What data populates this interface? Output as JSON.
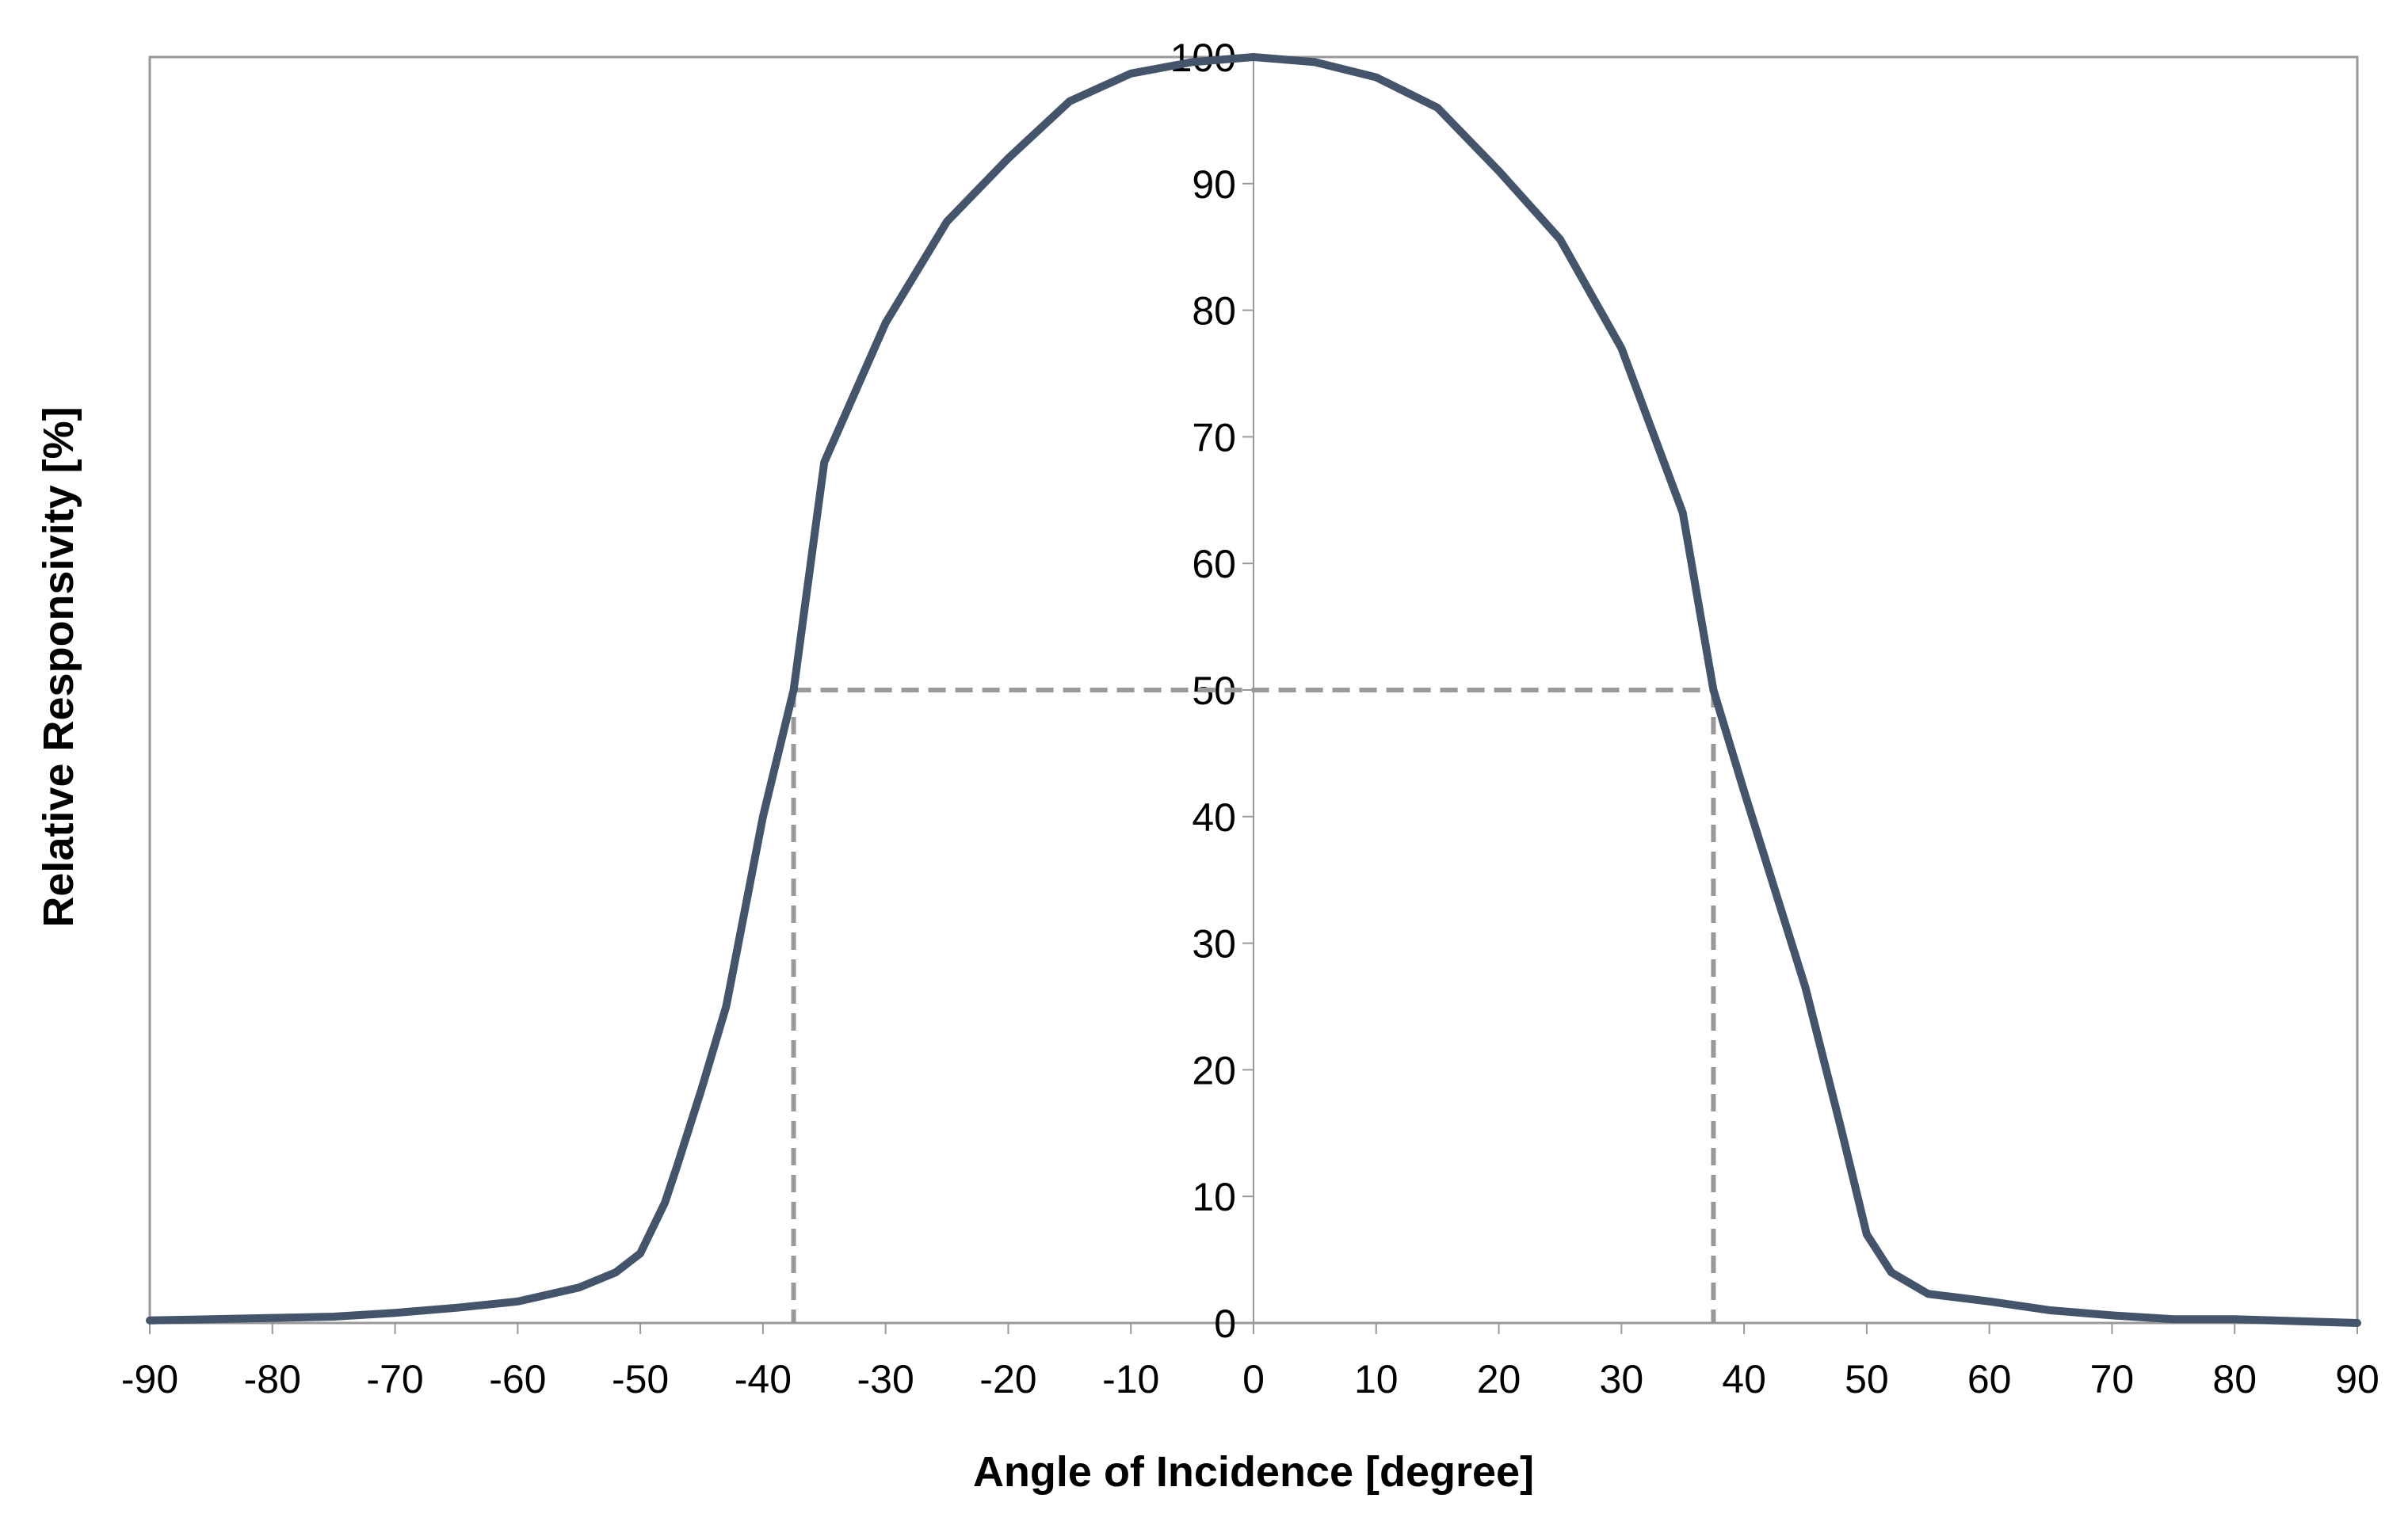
{
  "chart_data": {
    "type": "line",
    "x_label": "Angle of Incidence [degree]",
    "y_label": "Relative Responsivity [%]",
    "xlim": [
      -90,
      90
    ],
    "ylim": [
      0,
      100
    ],
    "xticks": [
      -90,
      -80,
      -70,
      -60,
      -50,
      -40,
      -30,
      -20,
      -10,
      0,
      10,
      20,
      30,
      40,
      50,
      60,
      70,
      80,
      90
    ],
    "yticks": [
      0,
      10,
      20,
      30,
      40,
      50,
      60,
      70,
      80,
      90,
      100
    ],
    "reference_lines": {
      "y": 50,
      "x": [
        -37.5,
        37.5
      ],
      "color": "#999999"
    },
    "series": [
      {
        "color": "#44546a",
        "x": [
          -90,
          -80,
          -75,
          -70,
          -65,
          -60,
          -55,
          -52,
          -50,
          -48,
          -47,
          -45,
          -43,
          -40,
          -37.5,
          -35,
          -30,
          -25,
          -20,
          -15,
          -10,
          -5,
          0,
          5,
          10,
          15,
          20,
          25,
          30,
          35,
          37.5,
          40,
          45,
          48,
          50,
          52,
          55,
          60,
          65,
          70,
          75,
          80,
          90
        ],
        "values": [
          0.2,
          0.4,
          0.5,
          0.8,
          1.2,
          1.7,
          2.8,
          4.0,
          5.5,
          9.5,
          12.4,
          18.5,
          25,
          40,
          50,
          68,
          79,
          87,
          92,
          96.5,
          98.7,
          99.6,
          100,
          99.6,
          98.4,
          96,
          91,
          85.6,
          77,
          64,
          50,
          42,
          26.5,
          15,
          7,
          4,
          2.3,
          1.7,
          1.0,
          0.6,
          0.3,
          0.3,
          0
        ]
      }
    ]
  }
}
